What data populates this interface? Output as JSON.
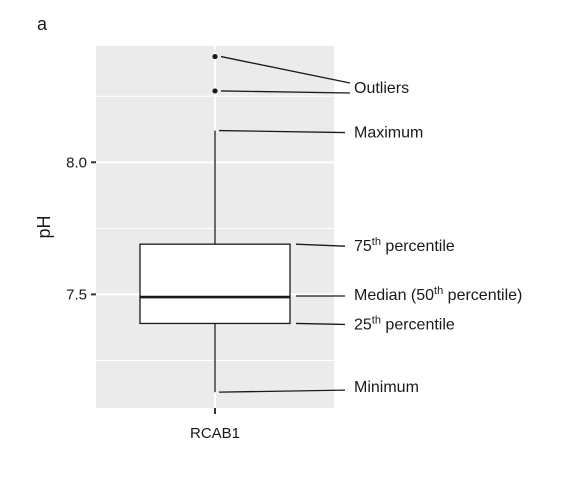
{
  "panel_label": "a",
  "chart_data": {
    "type": "box",
    "category": "RCAB1",
    "ylabel": "pH",
    "ylim": [
      7.07,
      8.44
    ],
    "yticks": [
      7.5,
      8.0
    ],
    "ytick_labels": [
      "7.5",
      "8.0"
    ],
    "grid": true,
    "stats": {
      "min": 7.13,
      "q1": 7.39,
      "median": 7.49,
      "q3": 7.69,
      "max": 8.12,
      "outliers": [
        8.27,
        8.4
      ]
    },
    "annotations": {
      "outliers": {
        "prefix": "Outliers",
        "sup": "",
        "suffix": ""
      },
      "maximum": {
        "prefix": "Maximum",
        "sup": "",
        "suffix": ""
      },
      "q3": {
        "prefix": "75",
        "sup": "th",
        "suffix": " percentile"
      },
      "median": {
        "prefix": "Median (50",
        "sup": "th",
        "suffix": " percentile)"
      },
      "q1": {
        "prefix": "25",
        "sup": "th",
        "suffix": " percentile"
      },
      "minimum": {
        "prefix": "Minimum",
        "sup": "",
        "suffix": ""
      }
    },
    "colors": {
      "panel_bg": "#ebebeb",
      "grid": "#ffffff",
      "box_fill": "#ffffff",
      "ink": "#1a1a1a"
    }
  }
}
